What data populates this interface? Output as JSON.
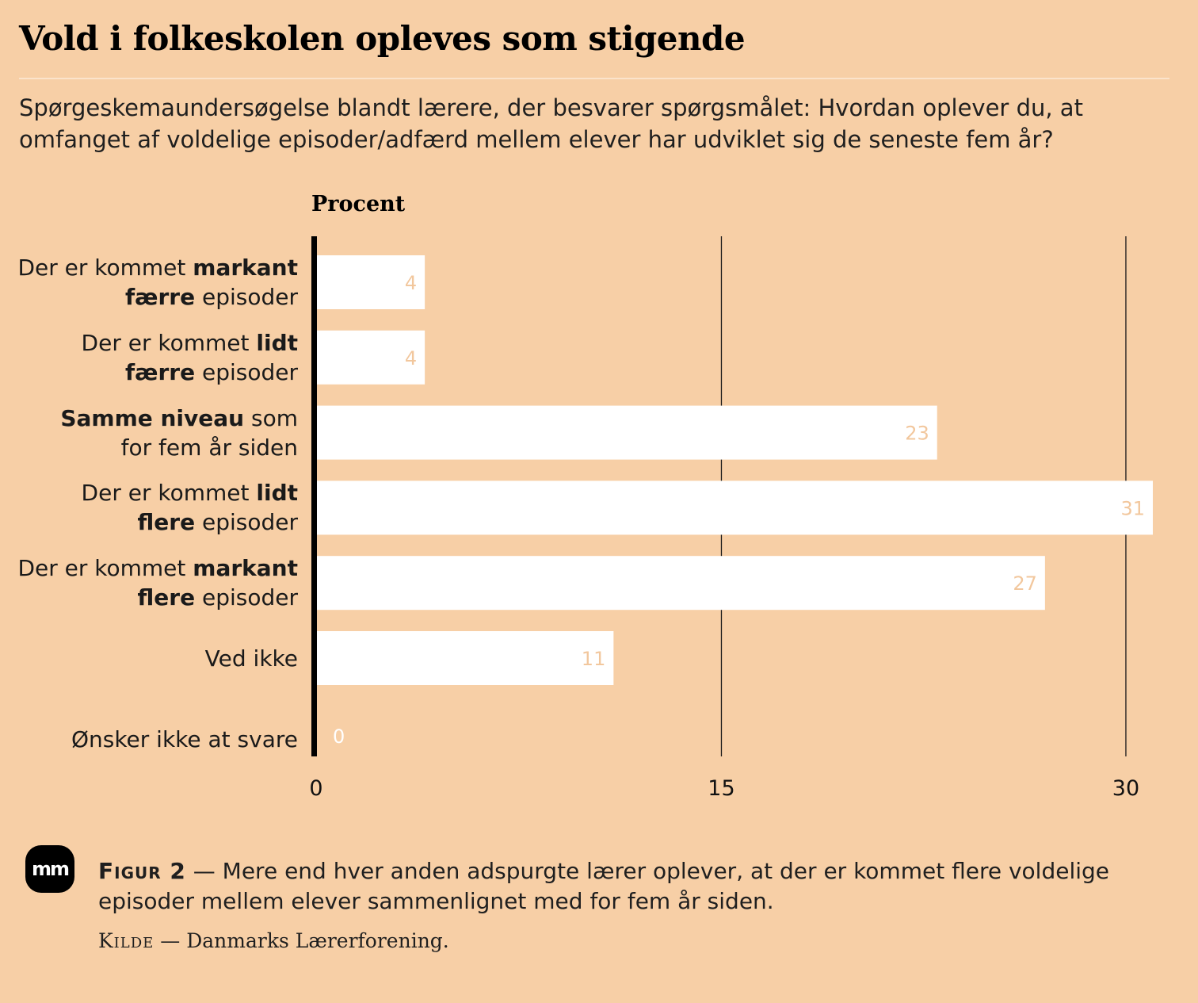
{
  "header": {
    "title": "Vold i folkeskolen opleves som stigende",
    "subtitle": "Spørgeskemaundersøgelse blandt lærere, der besvarer spørgsmålet: Hvordan oplever du, at omfanget af voldelige episoder/adfærd mellem elever har udviklet sig de seneste fem år?"
  },
  "chart_data": {
    "type": "bar",
    "orientation": "horizontal",
    "unit_label": "Procent",
    "categories": [
      {
        "parts": [
          {
            "t": "Der er kommet "
          },
          {
            "t": "markant",
            "b": true
          },
          {
            "br": true
          },
          {
            "t": "færre",
            "b": true
          },
          {
            "t": " episoder"
          }
        ]
      },
      {
        "parts": [
          {
            "t": "Der er kommet "
          },
          {
            "t": "lidt",
            "b": true
          },
          {
            "br": true
          },
          {
            "t": "færre",
            "b": true
          },
          {
            "t": " episoder"
          }
        ]
      },
      {
        "parts": [
          {
            "t": "Samme niveau",
            "b": true
          },
          {
            "t": " som"
          },
          {
            "br": true
          },
          {
            "t": "for fem år siden"
          }
        ]
      },
      {
        "parts": [
          {
            "t": "Der er kommet "
          },
          {
            "t": "lidt",
            "b": true
          },
          {
            "br": true
          },
          {
            "t": "flere",
            "b": true
          },
          {
            "t": " episoder"
          }
        ]
      },
      {
        "parts": [
          {
            "t": "Der er kommet "
          },
          {
            "t": "markant",
            "b": true
          },
          {
            "br": true
          },
          {
            "t": "flere",
            "b": true
          },
          {
            "t": " episoder"
          }
        ]
      },
      {
        "parts": [
          {
            "t": "Ved ikke"
          }
        ]
      },
      {
        "parts": [
          {
            "t": "Ønsker ikke at svare"
          }
        ]
      }
    ],
    "values": [
      4,
      4,
      23,
      31,
      27,
      11,
      0
    ],
    "value_labels": [
      "4",
      "4",
      "23",
      "31",
      "27",
      "11",
      "0"
    ],
    "xlim": [
      0,
      31
    ],
    "ticks": [
      0,
      15,
      30
    ],
    "tick_labels": [
      "0",
      "15",
      "30"
    ],
    "grid": true,
    "colors": {
      "bar": "#ffffff",
      "value_label": "#f2c79d",
      "value_label_zero": "#ffffff",
      "grid": "#1a1a1a",
      "axis": "#000000"
    }
  },
  "footer": {
    "logo_text": "mm",
    "figure_label": "Figur 2",
    "figure_sep": " — ",
    "figure_text": "Mere end hver anden adspurgte lærer oplever, at der er kommet flere voldelige episoder mellem elever sammenlignet med for fem år siden.",
    "source_label": "Kilde",
    "source_sep": " — ",
    "source_text": "Danmarks Lærerforening."
  }
}
